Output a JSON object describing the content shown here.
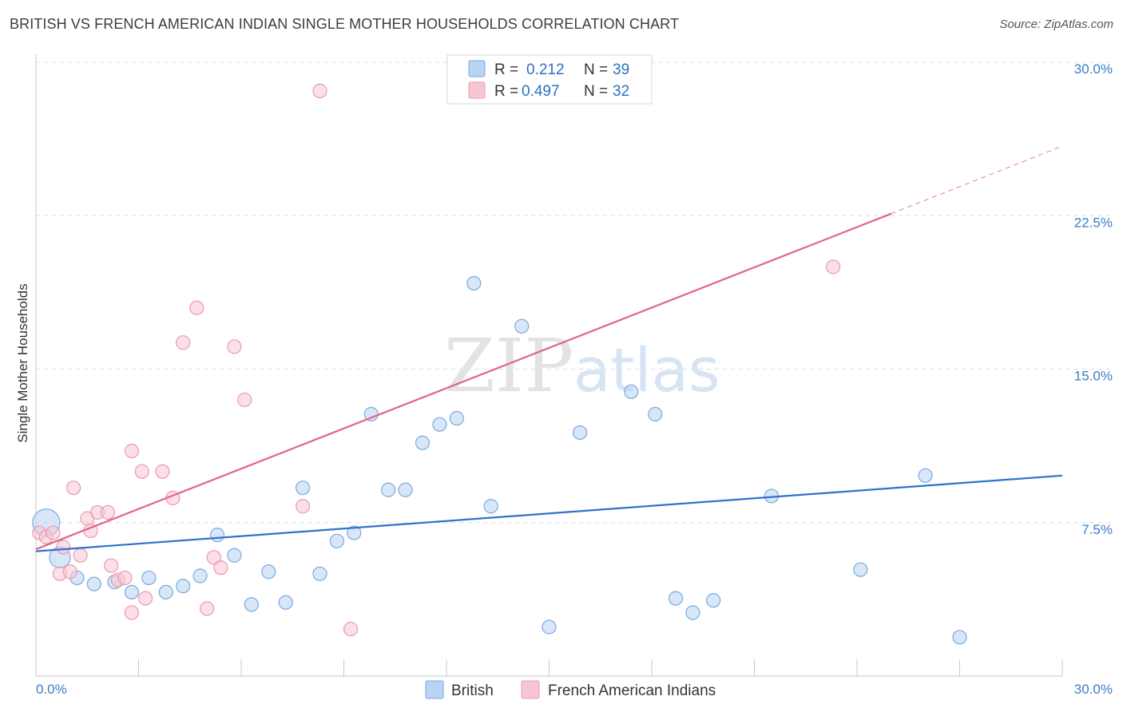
{
  "title": "BRITISH VS FRENCH AMERICAN INDIAN SINGLE MOTHER HOUSEHOLDS CORRELATION CHART",
  "source": "Source: ZipAtlas.com",
  "watermark": {
    "zip": "ZIP",
    "atlas": "atlas"
  },
  "colors": {
    "british_fill": "#b8d3f3",
    "british_stroke": "#7aa9e0",
    "british_line": "#2f72cc",
    "french_fill": "#f8c6d3",
    "french_stroke": "#ee97ae",
    "french_line": "#e0648c",
    "tick_label": "#3b7dc4",
    "grid": "#dcdcdc"
  },
  "legend": {
    "rows": [
      {
        "r_label": "R =",
        "r_value": "0.212",
        "n_label": "N =",
        "n_value": "39"
      },
      {
        "r_label": "R =",
        "r_value": "0.497",
        "n_label": "N =",
        "n_value": "32"
      }
    ],
    "bottom": [
      "British",
      "French American Indians"
    ]
  },
  "chart_data": {
    "type": "scatter",
    "ylabel": "Single Mother Households",
    "xlim": [
      0,
      30
    ],
    "ylim": [
      0,
      30
    ],
    "x_tick_labels": [
      "0.0%",
      "30.0%"
    ],
    "y_ticks": [
      {
        "value": 7.5,
        "label": "7.5%"
      },
      {
        "value": 15.0,
        "label": "15.0%"
      },
      {
        "value": 22.5,
        "label": "22.5%"
      },
      {
        "value": 30.0,
        "label": "30.0%"
      }
    ],
    "grid": true,
    "series": [
      {
        "name": "British",
        "r": 0.212,
        "n": 39,
        "trend": {
          "x0": 0,
          "y0": 6.1,
          "x1": 30,
          "y1": 9.8
        },
        "points": [
          [
            0.3,
            7.5,
            3
          ],
          [
            0.7,
            5.8,
            2
          ],
          [
            1.2,
            4.8,
            1
          ],
          [
            1.7,
            4.5,
            1
          ],
          [
            2.3,
            4.6,
            1
          ],
          [
            2.8,
            4.1,
            1
          ],
          [
            3.3,
            4.8,
            1
          ],
          [
            3.8,
            4.1,
            1
          ],
          [
            4.3,
            4.4,
            1
          ],
          [
            4.8,
            4.9,
            1
          ],
          [
            5.3,
            6.9,
            1
          ],
          [
            5.8,
            5.9,
            1
          ],
          [
            6.3,
            3.5,
            1
          ],
          [
            6.8,
            5.1,
            1
          ],
          [
            7.3,
            3.6,
            1
          ],
          [
            7.8,
            9.2,
            1
          ],
          [
            8.3,
            5.0,
            1
          ],
          [
            8.8,
            6.6,
            1
          ],
          [
            9.3,
            7.0,
            1
          ],
          [
            9.8,
            12.8,
            1
          ],
          [
            10.3,
            9.1,
            1
          ],
          [
            10.8,
            9.1,
            1
          ],
          [
            11.3,
            11.4,
            1
          ],
          [
            11.8,
            12.3,
            1
          ],
          [
            12.3,
            12.6,
            1
          ],
          [
            12.8,
            19.2,
            1
          ],
          [
            13.3,
            8.3,
            1
          ],
          [
            14.2,
            17.1,
            1
          ],
          [
            15.0,
            2.4,
            1
          ],
          [
            15.9,
            11.9,
            1
          ],
          [
            17.4,
            13.9,
            1
          ],
          [
            18.1,
            12.8,
            1
          ],
          [
            18.7,
            3.8,
            1
          ],
          [
            19.2,
            3.1,
            1
          ],
          [
            19.8,
            3.7,
            1
          ],
          [
            21.5,
            8.8,
            1
          ],
          [
            24.1,
            5.2,
            1
          ],
          [
            26.0,
            9.8,
            1
          ],
          [
            27.0,
            1.9,
            1
          ]
        ]
      },
      {
        "name": "French American Indians",
        "r": 0.497,
        "n": 32,
        "trend": {
          "x0": 0,
          "y0": 6.2,
          "x1": 25.0,
          "y1": 22.6,
          "x_ext": 30,
          "y_ext": 25.9
        },
        "points": [
          [
            0.1,
            7.0,
            1
          ],
          [
            0.3,
            6.8,
            1
          ],
          [
            0.5,
            7.0,
            1
          ],
          [
            0.7,
            5.0,
            1
          ],
          [
            0.8,
            6.3,
            1
          ],
          [
            1.0,
            5.1,
            1
          ],
          [
            1.1,
            9.2,
            1
          ],
          [
            1.3,
            5.9,
            1
          ],
          [
            1.5,
            7.7,
            1
          ],
          [
            1.6,
            7.1,
            1
          ],
          [
            1.8,
            8.0,
            1
          ],
          [
            2.1,
            8.0,
            1
          ],
          [
            2.2,
            5.4,
            1
          ],
          [
            2.4,
            4.7,
            1
          ],
          [
            2.6,
            4.8,
            1
          ],
          [
            2.8,
            3.1,
            1
          ],
          [
            2.8,
            11.0,
            1
          ],
          [
            3.1,
            10.0,
            1
          ],
          [
            3.2,
            3.8,
            1
          ],
          [
            3.7,
            10.0,
            1
          ],
          [
            4.0,
            8.7,
            1
          ],
          [
            4.3,
            16.3,
            1
          ],
          [
            4.7,
            18.0,
            1
          ],
          [
            5.0,
            3.3,
            1
          ],
          [
            5.2,
            5.8,
            1
          ],
          [
            5.4,
            5.3,
            1
          ],
          [
            5.8,
            16.1,
            1
          ],
          [
            6.1,
            13.5,
            1
          ],
          [
            7.8,
            8.3,
            1
          ],
          [
            8.3,
            28.6,
            1
          ],
          [
            9.2,
            2.3,
            1
          ],
          [
            23.3,
            20.0,
            1
          ]
        ]
      }
    ]
  }
}
